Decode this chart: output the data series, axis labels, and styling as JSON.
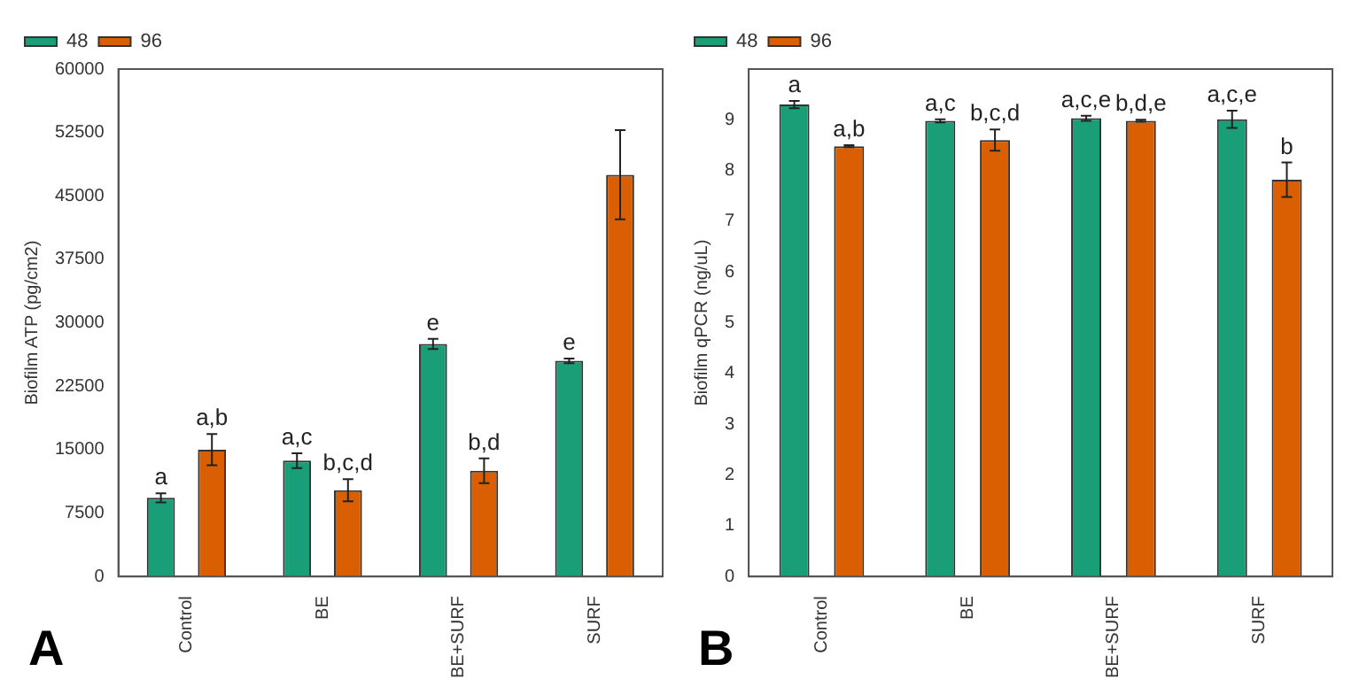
{
  "chart_data": [
    {
      "type": "bar",
      "categories": [
        "Control",
        "BE",
        "BE+SURF",
        "SURF"
      ],
      "ylabel": "Biofilm ATP (pg/cm2)",
      "ylim": [
        0,
        60000
      ],
      "yticks": [
        0,
        7500,
        15000,
        22500,
        30000,
        37500,
        45000,
        52500,
        60000
      ],
      "legend": "top left",
      "annotations": [
        "A"
      ],
      "series": [
        {
          "name": "48",
          "color": "#1a9e77",
          "values": [
            9300,
            13700,
            27500,
            25500
          ],
          "errors": [
            530,
            870,
            600,
            270
          ],
          "value_labels": [
            "a",
            "a,c",
            "e",
            "e"
          ]
        },
        {
          "name": "96",
          "color": "#d95f02",
          "values": [
            15000,
            10200,
            12500,
            47500
          ],
          "errors": [
            1850,
            1300,
            1470,
            5270
          ],
          "value_labels": [
            "a,b",
            "b,c,d",
            "b,d",
            null
          ]
        }
      ]
    },
    {
      "type": "bar",
      "categories": [
        "Control",
        "BE",
        "BE+SURF",
        "SURF"
      ],
      "ylabel": "Biofilm qPCR (ng/uL)",
      "ylim": [
        0,
        10
      ],
      "yticks": [
        0,
        1,
        2,
        3,
        4,
        5,
        6,
        7,
        8,
        9
      ],
      "legend": "top left",
      "annotations": [
        "B"
      ],
      "series": [
        {
          "name": "48",
          "color": "#1a9e77",
          "values": [
            9.3,
            8.98,
            9.03,
            9.01
          ],
          "errors": [
            0.07,
            0.03,
            0.05,
            0.17
          ],
          "value_labels": [
            "a",
            "a,c",
            "a,c,e",
            "a,c,e"
          ]
        },
        {
          "name": "96",
          "color": "#d95f02",
          "values": [
            8.48,
            8.6,
            8.98,
            7.82
          ],
          "errors": [
            0.02,
            0.21,
            0.02,
            0.34
          ],
          "value_labels": [
            "a,b",
            "b,c,d",
            "b,d,e",
            "b"
          ]
        }
      ]
    }
  ]
}
